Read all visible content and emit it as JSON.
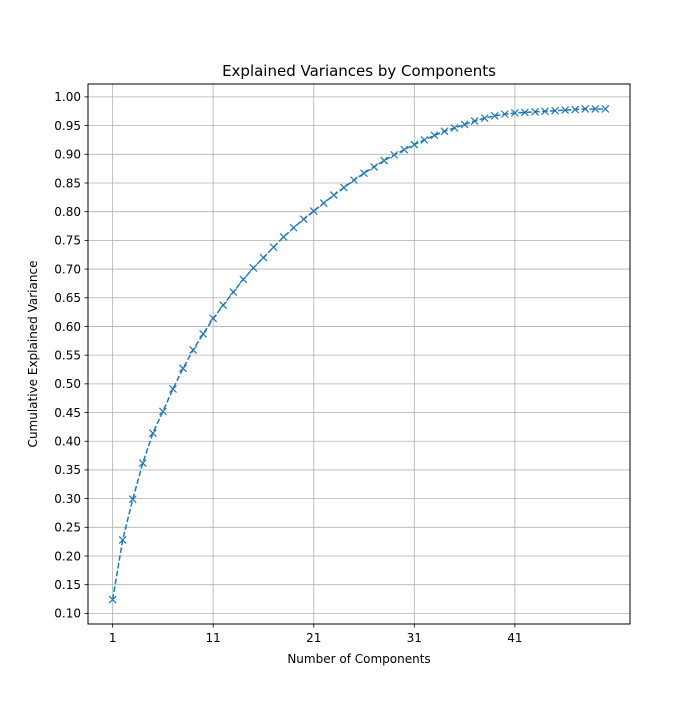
{
  "chart_data": {
    "type": "line",
    "title": "Explained Variances by Components",
    "xlabel": "Number of Components",
    "ylabel": "Cumulative Explained Variance",
    "xlim": [
      -1.45,
      52.45
    ],
    "ylim": [
      0.0815,
      1.0225
    ],
    "xticks": [
      1,
      11,
      21,
      31,
      41
    ],
    "yticks": [
      0.1,
      0.15,
      0.2,
      0.25,
      0.3,
      0.35,
      0.4,
      0.45,
      0.5,
      0.55,
      0.6,
      0.65,
      0.7,
      0.75,
      0.8,
      0.85,
      0.9,
      0.95,
      1.0
    ],
    "ytick_labels": [
      "0.10",
      "0.15",
      "0.20",
      "0.25",
      "0.30",
      "0.35",
      "0.40",
      "0.45",
      "0.50",
      "0.55",
      "0.60",
      "0.65",
      "0.70",
      "0.75",
      "0.80",
      "0.85",
      "0.90",
      "0.95",
      "1.00"
    ],
    "grid": true,
    "line_style": "dashed",
    "marker": "x",
    "color": "#1f77b4",
    "series": [
      {
        "x": [
          1,
          2,
          3,
          4,
          5,
          6,
          7,
          8,
          9,
          10,
          11,
          12,
          13,
          14,
          15,
          16,
          17,
          18,
          19,
          20,
          21,
          22,
          23,
          24,
          25,
          26,
          27,
          28,
          29,
          30,
          31,
          32,
          33,
          34,
          35,
          36,
          37,
          38,
          39,
          40,
          41,
          42,
          43,
          44,
          45,
          46,
          47,
          48,
          49,
          50
        ],
        "values": [
          0.124,
          0.228,
          0.299,
          0.362,
          0.414,
          0.452,
          0.491,
          0.527,
          0.559,
          0.587,
          0.614,
          0.637,
          0.66,
          0.682,
          0.702,
          0.72,
          0.738,
          0.756,
          0.772,
          0.787,
          0.801,
          0.815,
          0.829,
          0.842,
          0.855,
          0.867,
          0.878,
          0.889,
          0.899,
          0.908,
          0.917,
          0.925,
          0.933,
          0.94,
          0.946,
          0.952,
          0.958,
          0.963,
          0.967,
          0.97,
          0.972,
          0.973,
          0.974,
          0.975,
          0.976,
          0.977,
          0.978,
          0.979,
          0.979,
          0.979
        ]
      }
    ]
  }
}
